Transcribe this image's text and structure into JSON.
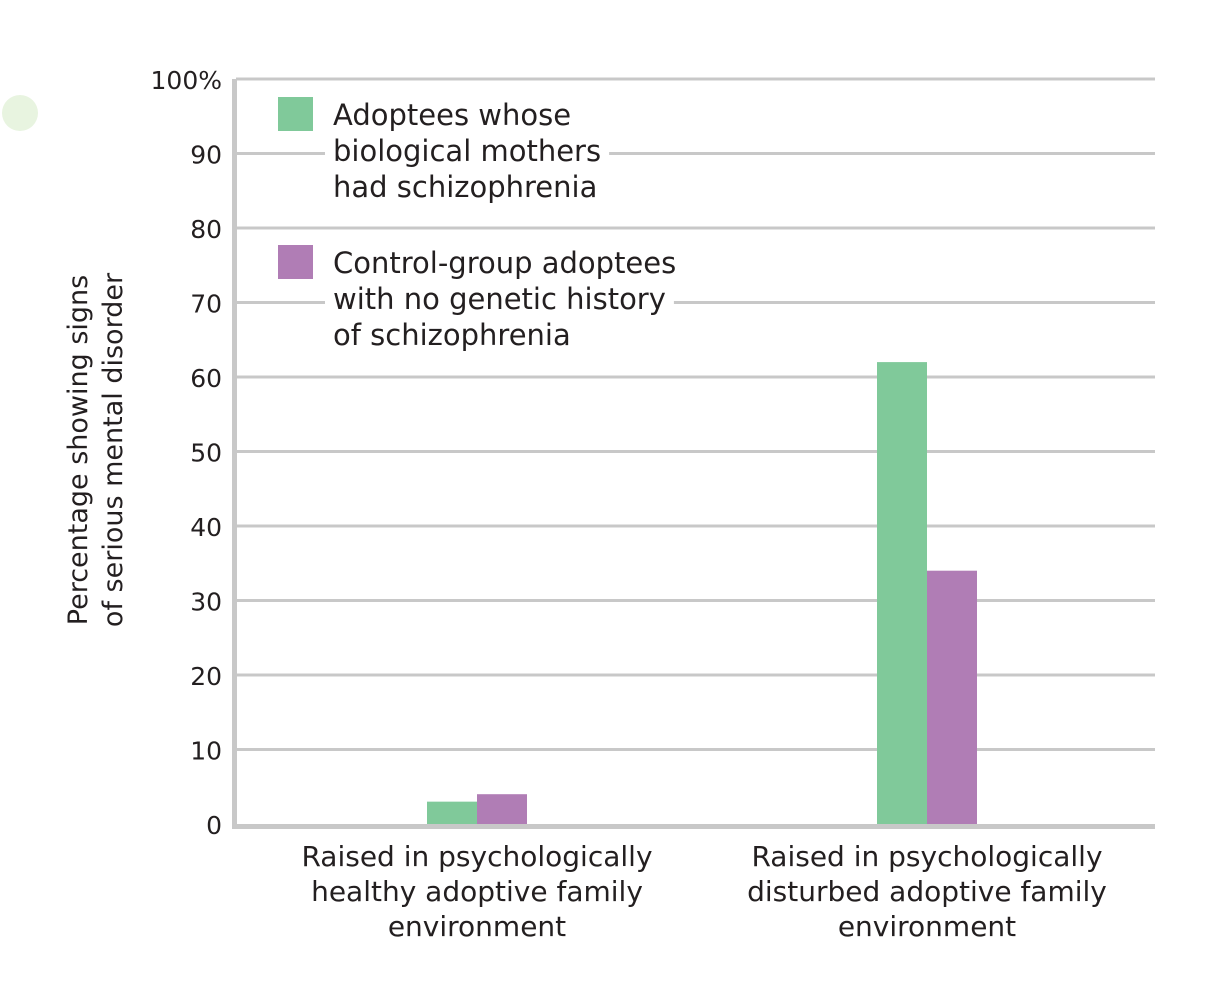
{
  "chart_data": {
    "type": "bar",
    "title": "",
    "xlabel": "",
    "ylabel": [
      "Percentage showing signs",
      "of serious mental disorder"
    ],
    "ylim": [
      0,
      100
    ],
    "yticks": [
      "0",
      "10",
      "20",
      "30",
      "40",
      "50",
      "60",
      "70",
      "80",
      "90",
      "100%"
    ],
    "grid": true,
    "legend_placement": "top-left",
    "categories": [
      [
        "Raised in psychologically",
        "healthy adoptive family",
        "environment"
      ],
      [
        "Raised in psychologically",
        "disturbed adoptive family",
        "environment"
      ]
    ],
    "series": [
      {
        "name": [
          "Adoptees whose",
          "biological mothers",
          "had schizophrenia"
        ],
        "color": "#80c99a",
        "values": [
          3,
          62
        ]
      },
      {
        "name": [
          "Control-group adoptees",
          "with no genetic history",
          "of schizophrenia"
        ],
        "color": "#b07db5",
        "values": [
          4,
          34
        ]
      }
    ]
  }
}
